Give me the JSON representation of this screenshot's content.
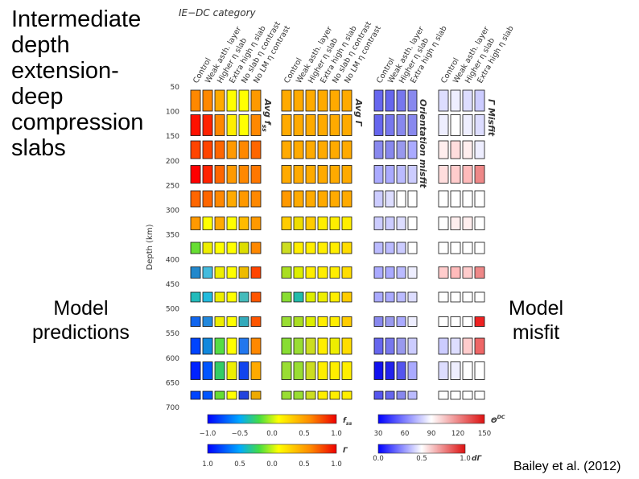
{
  "slide": {
    "title_lines": [
      "Intermediate",
      "depth",
      "extension-",
      "deep",
      "compression",
      "slabs"
    ],
    "left_caption": [
      "Model",
      "predictions"
    ],
    "right_caption": [
      "Model",
      "misfit"
    ],
    "citation": "Bailey et al. (2012)"
  },
  "figure": {
    "heading": "IE−DC category",
    "depth_label": "Depth (km)",
    "depth_ticks": [
      50,
      100,
      150,
      200,
      250,
      300,
      350,
      400,
      450,
      500,
      550,
      600,
      650,
      700
    ],
    "groups": [
      {
        "label": {
          "main": "Avg f",
          "sub": "ss"
        },
        "columns": [
          "Control",
          "Weak asth. layer",
          "Higher η slab",
          "Extra high η slab",
          "No slab η contrast",
          "No LM η contrast"
        ],
        "cells": [
          [
            "#ff8800",
            "#ff8800",
            "#ffaa00",
            "#ffff00",
            "#ffff00",
            "#ff9900"
          ],
          [
            "#ff1100",
            "#ff2200",
            "#ff8800",
            "#ffee00",
            "#ffff00",
            "#ff8800"
          ],
          [
            "#ff4400",
            "#ff4400",
            "#ff6600",
            "#ff9900",
            "#ff8800",
            "#ff6600"
          ],
          [
            "#ff0000",
            "#ff2200",
            "#ff6600",
            "#ff9900",
            "#ff8800",
            "#ff7700"
          ],
          [
            "#ff6600",
            "#ff6600",
            "#ff8800",
            "#ffaa00",
            "#ff9900",
            "#ff8800"
          ],
          [
            "#ff9900",
            "#ffff00",
            "#ffaa00",
            "#ffff00",
            "#ffbb00",
            "#ff9900"
          ],
          [
            "#66dd33",
            "#eeee00",
            "#ffff00",
            "#ffff00",
            "#dddd00",
            "#ff8800"
          ],
          [
            "#2288cc",
            "#44bbdd",
            "#eeee00",
            "#ffff00",
            "#eebb00",
            "#ff4400"
          ],
          [
            "#22bbbb",
            "#22bbdd",
            "#eeee00",
            "#ffff00",
            "#44bbbb",
            "#ff5500"
          ],
          [
            "#1166ee",
            "#2288dd",
            "#eeee00",
            "#ffff00",
            "#33aabb",
            "#ff5500"
          ],
          [
            "#0044ff",
            "#1188dd",
            "#55dd44",
            "#ffff00",
            "#2277ee",
            "#ff8800"
          ],
          [
            "#0022ff",
            "#0055ff",
            "#33cc66",
            "#eeee00",
            "#1144ee",
            "#ffaa00"
          ],
          [
            "#0044ff",
            "#0055ff",
            "#66dd33",
            "#ffff00",
            "#2244dd",
            "#eeaa00"
          ]
        ]
      },
      {
        "label": {
          "main": "Avg Γ",
          "sub": ""
        },
        "columns": [
          "Control",
          "Weak asth. layer",
          "Higher η slab",
          "Extra high η slab",
          "No slab η contrast",
          "No LM η contrast"
        ],
        "cells": [
          [
            "#ffaa00",
            "#ffaa00",
            "#ffaa00",
            "#ffaa00",
            "#ffaa00",
            "#ffaa00"
          ],
          [
            "#ffaa00",
            "#ffaa00",
            "#ffaa00",
            "#ffaa00",
            "#ffaa00",
            "#ffaa00"
          ],
          [
            "#ffaa00",
            "#ffaa00",
            "#ffaa00",
            "#ffaa00",
            "#ffaa00",
            "#ffaa00"
          ],
          [
            "#ffaa00",
            "#ffaa00",
            "#ffaa00",
            "#ffaa00",
            "#ffaa00",
            "#ffaa00"
          ],
          [
            "#ff9900",
            "#ffaa00",
            "#ffaa00",
            "#ffaa00",
            "#ffaa00",
            "#ffaa00"
          ],
          [
            "#ffcc00",
            "#eedd00",
            "#ffcc00",
            "#ffee00",
            "#ffee00",
            "#ffee00"
          ],
          [
            "#ccdd22",
            "#ffee00",
            "#ffee00",
            "#ffee00",
            "#ffee00",
            "#ffdd00"
          ],
          [
            "#aade22",
            "#ddee00",
            "#ffee00",
            "#ffee00",
            "#ffee00",
            "#ffdd00"
          ],
          [
            "#88dd33",
            "#22bbaa",
            "#ddee00",
            "#eeee00",
            "#ffee00",
            "#ffcc00"
          ],
          [
            "#99dd33",
            "#aade22",
            "#ddee00",
            "#ffee00",
            "#ffee00",
            "#ffcc00"
          ],
          [
            "#88dd33",
            "#99dd33",
            "#ccdd22",
            "#ffee00",
            "#eeee00",
            "#ffdd00"
          ],
          [
            "#99dd33",
            "#99dd33",
            "#ccdd22",
            "#ffee00",
            "#ffee00",
            "#ffee00"
          ],
          [
            "#99dd33",
            "#99dd33",
            "#ccdd22",
            "#ffee00",
            "#ffee00",
            "#ffee00"
          ]
        ]
      },
      {
        "label": {
          "main": "Orientation misfit",
          "sub": ""
        },
        "columns": [
          "Control",
          "Weak asth. layer",
          "Higher η slab",
          "Extra high η slab"
        ],
        "cells": [
          [
            "#6666ee",
            "#6666ee",
            "#7777ee",
            "#8888ee"
          ],
          [
            "#6666ee",
            "#7777ee",
            "#8888ee",
            "#8888ee"
          ],
          [
            "#8888ee",
            "#8888ee",
            "#9999ee",
            "#aaaaff"
          ],
          [
            "#aaaaff",
            "#aaaaff",
            "#bbbbff",
            "#ccccff"
          ],
          [
            "#ccccff",
            "#ddddff",
            "#ffffff",
            "#ffffff"
          ],
          [
            "#ccccff",
            "#ccccff",
            "#ddddff",
            "#ffffff"
          ],
          [
            "#bbbbff",
            "#bbbbff",
            "#ccccff",
            "#ffffff"
          ],
          [
            "#aaaaff",
            "#aaaaff",
            "#bbbbff",
            "#eeeeff"
          ],
          [
            "#aaaaff",
            "#aaaaff",
            "#bbbbff",
            "#ddddff"
          ],
          [
            "#8888ee",
            "#9999ee",
            "#aaaaff",
            "#eeeeff"
          ],
          [
            "#6666ee",
            "#7777ee",
            "#9999ee",
            "#ccccff"
          ],
          [
            "#1111ee",
            "#2222ee",
            "#5555ee",
            "#aaaaff"
          ],
          [
            "#5555ee",
            "#6666ee",
            "#8888ee",
            "#bbbbff"
          ]
        ]
      },
      {
        "label": {
          "main": "Γ Misfit",
          "sub": ""
        },
        "columns": [
          "Control",
          "Weak asth. layer",
          "Higher η slab",
          "Extra high η slab"
        ],
        "cells": [
          [
            "#ddddff",
            "#eeeeff",
            "#ddddff",
            "#ccccff"
          ],
          [
            "#eeeeff",
            "#ffffff",
            "#eeeeff",
            "#ddddff"
          ],
          [
            "#ffeeee",
            "#ffdddd",
            "#ffeeee",
            "#eeeeff"
          ],
          [
            "#ffdddd",
            "#ffcccc",
            "#ffbbbb",
            "#ee8888"
          ],
          [
            "#ffffff",
            "#ffffff",
            "#ffffff",
            "#ffffff"
          ],
          [
            "#ffffff",
            "#ffeeee",
            "#ffeeee",
            "#ffffff"
          ],
          [
            "#ffffff",
            "#ffffff",
            "#ffffff",
            "#ffffff"
          ],
          [
            "#ffcccc",
            "#ffbbbb",
            "#ffcccc",
            "#ee8888"
          ],
          [
            "#ffffff",
            "#ffffff",
            "#ffffff",
            "#ffffff"
          ],
          [
            "#ffffff",
            "#ffffff",
            "#ffffff",
            "#ee2222"
          ],
          [
            "#ccccff",
            "#ddddff",
            "#ffcccc",
            "#ee6666"
          ],
          [
            "#ddddff",
            "#eeeeff",
            "#ffffff",
            "#ffffff"
          ],
          [
            "#ffffff",
            "#ffffff",
            "#ffffff",
            "#ffffff"
          ]
        ]
      }
    ],
    "colorbars": [
      {
        "label": {
          "main": "f",
          "sub": "ss",
          "sup": ""
        },
        "ticks": [
          "−1.0",
          "−0.5",
          "0.0",
          "0.5",
          "1.0"
        ]
      },
      {
        "label": {
          "main": "Γ",
          "sub": "",
          "sup": ""
        },
        "ticks": [
          "1.0",
          "0.5",
          "0.0",
          "0.5",
          "1.0"
        ]
      },
      {
        "label": {
          "main": "Θ",
          "sub": "",
          "sup": "DC"
        },
        "ticks": [
          "30",
          "60",
          "90",
          "120",
          "150"
        ]
      },
      {
        "label": {
          "main": "dΓ",
          "sub": "",
          "sup": ""
        },
        "ticks": [
          "0.0",
          "0.5",
          "1.0"
        ]
      }
    ]
  }
}
